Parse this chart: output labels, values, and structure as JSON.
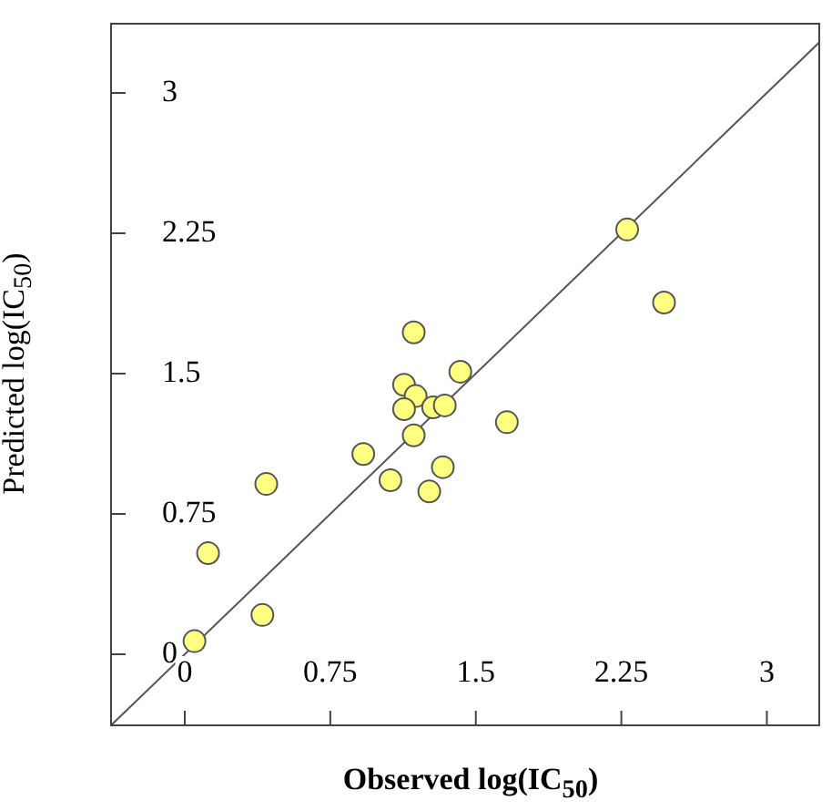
{
  "chart_data": {
    "type": "scatter",
    "xlabel": "Observed log(IC$_{50}$)",
    "ylabel": "Predicted log(IC$_{50}$)",
    "xlim": [
      -0.38,
      3.27
    ],
    "ylim": [
      -0.38,
      3.37
    ],
    "xticks": [
      0,
      0.75,
      1.5,
      2.25,
      3
    ],
    "yticks": [
      0,
      0.75,
      1.5,
      2.25,
      3
    ],
    "grid": false,
    "legend": false,
    "marker": "circle",
    "series": [
      {
        "color": "#ffff80",
        "x": [
          2.28,
          2.47,
          1.18,
          1.42,
          1.13,
          1.19,
          1.13,
          1.28,
          1.34,
          1.66,
          1.18,
          0.92,
          1.06,
          1.33,
          1.26,
          0.42,
          0.12,
          0.4,
          0.05
        ],
        "values": [
          2.27,
          1.88,
          1.72,
          1.51,
          1.44,
          1.38,
          1.31,
          1.32,
          1.33,
          1.24,
          1.17,
          1.07,
          0.93,
          1.0,
          0.87,
          0.91,
          0.54,
          0.21,
          0.07
        ]
      },
      {
        "type": "line",
        "color": "#555555",
        "marker": "none",
        "x": [
          -0.38,
          3.27
        ],
        "values": [
          -0.38,
          3.27
        ]
      }
    ]
  }
}
